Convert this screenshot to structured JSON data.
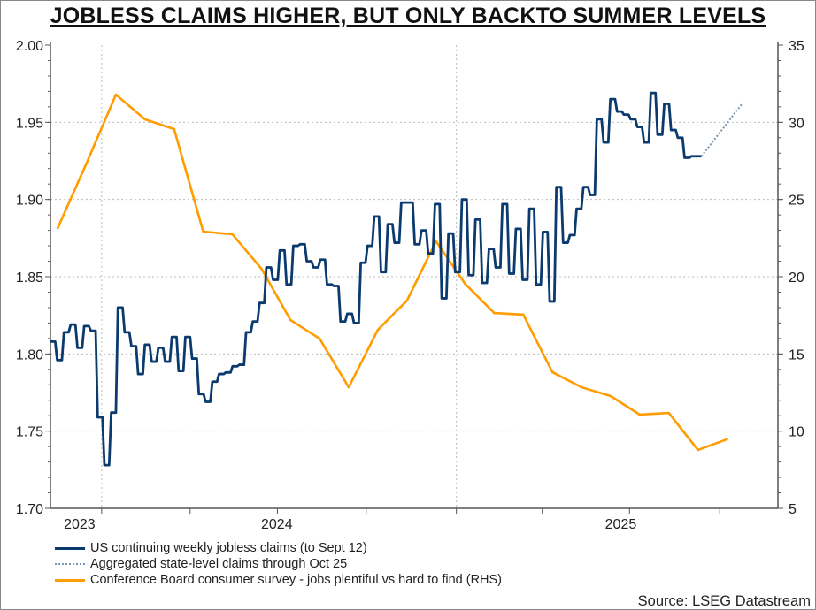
{
  "chart_data": {
    "type": "line",
    "title": "JOBLESS CLAIMS HIGHER, BUT ONLY BACKTO SUMMER LEVELS",
    "xlabel": "",
    "ylabel_left": "",
    "ylabel_right": "",
    "x_unit": "months from start of plotted range",
    "x_range": [
      0,
      25
    ],
    "ylim_left": [
      1.7,
      2.0
    ],
    "ylim_right": [
      5,
      35
    ],
    "left_ticks": [
      "1.70",
      "1.75",
      "1.80",
      "1.85",
      "1.90",
      "1.95",
      "2.00"
    ],
    "right_ticks": [
      "5",
      "10",
      "15",
      "20",
      "25",
      "30",
      "35"
    ],
    "x_tick_labels": [
      {
        "label": "2023",
        "x": 1.0
      },
      {
        "label": "2024",
        "x": 7.78
      },
      {
        "label": "2025",
        "x": 19.6
      }
    ],
    "x_gridlines": [
      1.76,
      13.95
    ],
    "x_minor_ticks": [
      1.76,
      4.8,
      7.8,
      10.85,
      13.95,
      16.9,
      19.9,
      23.0
    ],
    "grid": true,
    "legend_placement": "bottom-left",
    "series": [
      {
        "name": "US continuing weekly jobless claims (to Sept 12)",
        "axis": "left",
        "style": "step",
        "color": "#0b3a6e",
        "x_start": 0,
        "x_end": 22.37,
        "values": [
          1.808,
          1.796,
          1.814,
          1.819,
          1.804,
          1.818,
          1.815,
          1.759,
          1.728,
          1.762,
          1.83,
          1.814,
          1.805,
          1.787,
          1.806,
          1.795,
          1.804,
          1.795,
          1.811,
          1.789,
          1.811,
          1.797,
          1.774,
          1.769,
          1.782,
          1.787,
          1.788,
          1.792,
          1.793,
          1.814,
          1.821,
          1.833,
          1.856,
          1.848,
          1.867,
          1.845,
          1.87,
          1.871,
          1.86,
          1.856,
          1.861,
          1.845,
          1.844,
          1.821,
          1.826,
          1.82,
          1.859,
          1.87,
          1.889,
          1.853,
          1.884,
          1.872,
          1.898,
          1.898,
          1.871,
          1.88,
          1.865,
          1.897,
          1.836,
          1.878,
          1.853,
          1.9,
          1.851,
          1.887,
          1.846,
          1.868,
          1.856,
          1.897,
          1.852,
          1.881,
          1.848,
          1.894,
          1.845,
          1.879,
          1.834,
          1.908,
          1.872,
          1.877,
          1.894,
          1.908,
          1.903,
          1.952,
          1.937,
          1.965,
          1.957,
          1.955,
          1.952,
          1.947,
          1.937,
          1.969,
          1.942,
          1.962,
          1.945,
          1.94,
          1.927,
          1.928,
          1.928
        ]
      },
      {
        "name": "Aggregated state-level claims through Oct 25",
        "axis": "left",
        "style": "dotted",
        "color": "#7f93b3",
        "x": [
          22.37,
          23.77
        ],
        "values": [
          1.928,
          1.962
        ]
      },
      {
        "name": "Conference Board consumer survey - jobs plentiful vs hard to find (RHS)",
        "axis": "right",
        "style": "line",
        "color": "#ff9c00",
        "x": [
          0.25,
          1.25,
          2.25,
          3.25,
          4.25,
          5.25,
          6.25,
          7.25,
          8.25,
          9.25,
          10.25,
          11.25,
          12.25,
          13.25,
          14.25,
          15.25,
          16.25,
          17.25,
          18.25,
          19.25,
          20.25,
          21.25,
          22.25,
          23.25
        ],
        "values": [
          23.15,
          27.39,
          31.79,
          30.19,
          29.56,
          22.92,
          22.75,
          20.52,
          17.19,
          15.99,
          12.84,
          16.56,
          18.45,
          22.29,
          19.54,
          17.65,
          17.54,
          13.82,
          12.84,
          12.27,
          11.07,
          11.18,
          8.78,
          9.47
        ]
      }
    ],
    "source": "Source: LSEG Datastream"
  }
}
